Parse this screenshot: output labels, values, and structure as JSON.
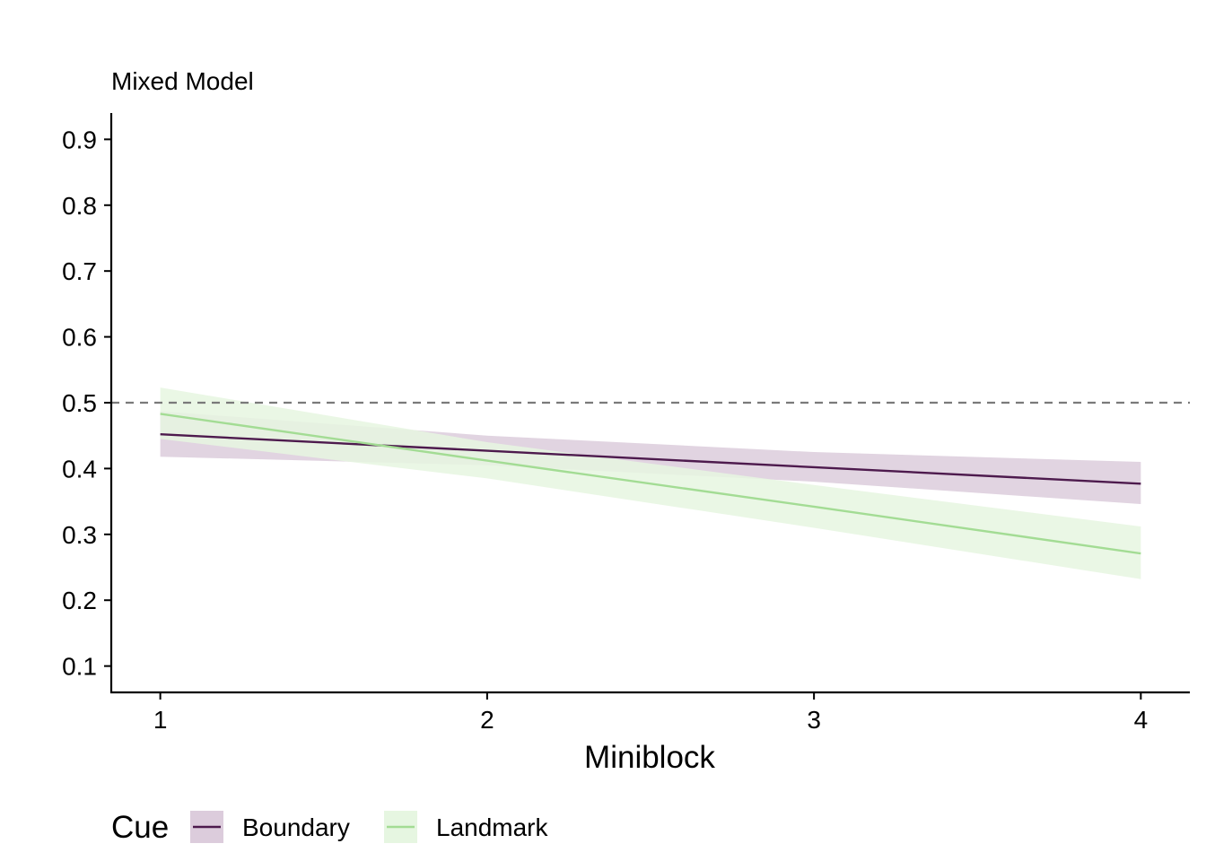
{
  "chart_data": {
    "type": "line",
    "title": "Mixed Model",
    "xlabel": "Miniblock",
    "ylabel": "",
    "xlim": [
      0.85,
      4.15
    ],
    "ylim": [
      0.06,
      0.94
    ],
    "x_ticks": [
      "1",
      "2",
      "3",
      "4"
    ],
    "y_ticks": [
      "0.1",
      "0.2",
      "0.3",
      "0.4",
      "0.5",
      "0.6",
      "0.7",
      "0.8",
      "0.9"
    ],
    "reference_line": {
      "y": 0.5,
      "style": "dashed",
      "color": "#7a7a7a"
    },
    "grid": false,
    "legend": {
      "title": "Cue",
      "position": "bottom"
    },
    "series": [
      {
        "name": "Boundary",
        "color": "#4d1a4d",
        "fill": "#dcccdc",
        "x": [
          1,
          2,
          3,
          4
        ],
        "y": [
          0.452,
          0.427,
          0.402,
          0.377
        ],
        "lower": [
          0.418,
          0.405,
          0.38,
          0.346
        ],
        "upper": [
          0.487,
          0.45,
          0.425,
          0.41
        ]
      },
      {
        "name": "Landmark",
        "color": "#a3dc94",
        "fill": "#e6f6e1",
        "x": [
          1,
          2,
          3,
          4
        ],
        "y": [
          0.483,
          0.412,
          0.342,
          0.271
        ],
        "lower": [
          0.445,
          0.385,
          0.31,
          0.232
        ],
        "upper": [
          0.523,
          0.44,
          0.375,
          0.312
        ]
      }
    ]
  }
}
